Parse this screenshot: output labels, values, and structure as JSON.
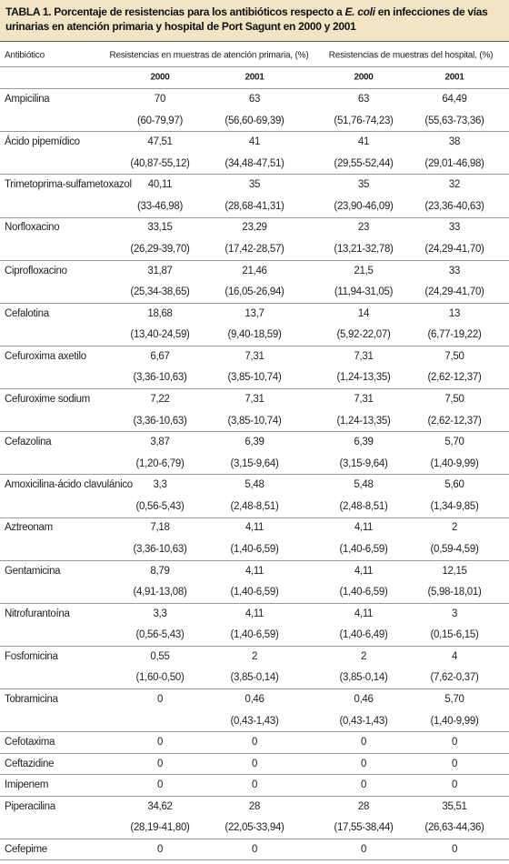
{
  "title": [
    "TABLA 1. Porcentaje de resistencias para los antibióticos respecto a ",
    "E. coli",
    " en infecciones de vías urinarias en atención primaria y hospital de Port Sagunt en 2000 y 2001"
  ],
  "header": {
    "antibiotic": "Antibiótico",
    "primary": "Resistencias en muestras de atención primaria, (%)",
    "hospital": "Resistencias de muestras del hospital, (%)",
    "years": [
      "2000",
      "2001",
      "2000",
      "2001"
    ]
  },
  "rows": [
    {
      "name": "Ampicilina",
      "values": [
        "70",
        "63",
        "63",
        "64,49"
      ],
      "ci": [
        "(60-79,97)",
        "(56,60-69,39)",
        "(51,76-74,23)",
        "(55,63-73,36)"
      ]
    },
    {
      "name": "Ácido pipemídico",
      "values": [
        "47,51",
        "41",
        "41",
        "38"
      ],
      "ci": [
        "(40,87-55,12)",
        "(34,48-47,51)",
        "(29,55-52,44)",
        "(29,01-46,98)"
      ]
    },
    {
      "name": "Trimetoprima-sulfametoxazol",
      "values": [
        "40,11",
        "35",
        "35",
        "32"
      ],
      "ci": [
        "(33-46,98)",
        "(28,68-41,31)",
        "(23,90-46,09)",
        "(23,36-40,63)"
      ]
    },
    {
      "name": "Norfloxacino",
      "values": [
        "33,15",
        "23,29",
        "23",
        "33"
      ],
      "ci": [
        "(26,29-39,70)",
        "(17,42-28,57)",
        "(13,21-32,78)",
        "(24,29-41,70)"
      ]
    },
    {
      "name": "Ciprofloxacino",
      "values": [
        "31,87",
        "21,46",
        "21,5",
        "33"
      ],
      "ci": [
        "(25,34-38,65)",
        "(16,05-26,94)",
        "(11,94-31,05)",
        "(24,29-41,70)"
      ]
    },
    {
      "name": "Cefalotina",
      "values": [
        "18,68",
        "13,7",
        "14",
        "13"
      ],
      "ci": [
        "(13,40-24,59)",
        "(9,40-18,59)",
        "(5,92-22,07)",
        "(6,77-19,22)"
      ]
    },
    {
      "name": "Cefuroxima axetilo",
      "values": [
        "6,67",
        "7,31",
        "7,31",
        "7,50"
      ],
      "ci": [
        "(3,36-10,63)",
        "(3,85-10,74)",
        "(1,24-13,35)",
        "(2,62-12,37)"
      ]
    },
    {
      "name": "Cefuroxime sodium",
      "values": [
        "7,22",
        "7,31",
        "7,31",
        "7,50"
      ],
      "ci": [
        "(3,36-10,63)",
        "(3,85-10,74)",
        "(1,24-13,35)",
        "(2,62-12,37)"
      ]
    },
    {
      "name": "Cefazolina",
      "values": [
        "3,87",
        "6,39",
        "6,39",
        "5,70"
      ],
      "ci": [
        "(1,20-6,79)",
        "(3,15-9,64)",
        "(3,15-9,64)",
        "(1,40-9,99)"
      ]
    },
    {
      "name": "Amoxicilina-ácido clavulánico",
      "values": [
        "3,3",
        "5,48",
        "5,48",
        "5,60"
      ],
      "ci": [
        "(0,56-5,43)",
        "(2,48-8,51)",
        "(2,48-8,51)",
        "(1,34-9,85)"
      ]
    },
    {
      "name": "Aztreonam",
      "values": [
        "7,18",
        "4,11",
        "4,11",
        "2"
      ],
      "ci": [
        "(3,36-10,63)",
        "(1,40-6,59)",
        "(1,40-6,59)",
        "(0,59-4,59)"
      ]
    },
    {
      "name": "Gentamicina",
      "values": [
        "8,79",
        "4,11",
        "4,11",
        "12,15"
      ],
      "ci": [
        "(4,91-13,08)",
        "(1,40-6,59)",
        "(1,40-6,59)",
        "(5,98-18,01)"
      ]
    },
    {
      "name": "Nitrofurantoína",
      "values": [
        "3,3",
        "4,11",
        "4,11",
        "3"
      ],
      "ci": [
        "(0,56-5,43)",
        "(1,40-6,59)",
        "(1,40-6,49)",
        "(0,15-6,15)"
      ]
    },
    {
      "name": "Fosfomicina",
      "values": [
        "0,55",
        "2",
        "2",
        "4"
      ],
      "ci": [
        "(1,60-0,50)",
        "(3,85-0,14)",
        "(3,85-0,14)",
        "(7,62-0,37)"
      ]
    },
    {
      "name": "Tobramicina",
      "values": [
        "0",
        "0,46",
        "0,46",
        "5,70"
      ],
      "ci": [
        null,
        "(0,43-1,43)",
        "(0,43-1,43)",
        "(1,40-9,99)"
      ]
    },
    {
      "name": "Cefotaxima",
      "values": [
        "0",
        "0",
        "0",
        "0"
      ]
    },
    {
      "name": "Ceftazidine",
      "values": [
        "0",
        "0",
        "0",
        "0"
      ]
    },
    {
      "name": "Imipenem",
      "values": [
        "0",
        "0",
        "0",
        "0"
      ]
    },
    {
      "name": "Piperacilina",
      "values": [
        "34,62",
        "28",
        "28",
        "35,51"
      ],
      "ci": [
        "(28,19-41,80)",
        "(22,05-33,94)",
        "(17,55-38,44)",
        "(26,63-44,36)"
      ]
    },
    {
      "name": "Cefepime",
      "values": [
        "0",
        "0",
        "0",
        "0"
      ]
    }
  ]
}
